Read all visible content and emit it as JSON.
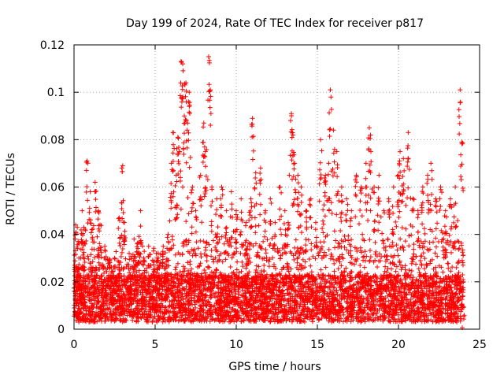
{
  "chart_data": {
    "type": "scatter",
    "title": "Day 199 of 2024, Rate Of TEC Index for receiver p817",
    "xlabel": "GPS time / hours",
    "ylabel": "ROTI / TECUs",
    "xlim": [
      0,
      25
    ],
    "ylim": [
      0,
      0.12
    ],
    "xticks": [
      0,
      5,
      10,
      15,
      20,
      25
    ],
    "xtick_labels": [
      "0",
      "5",
      "10",
      "15",
      "20",
      "25"
    ],
    "yticks": [
      0,
      0.02,
      0.04,
      0.06,
      0.08,
      0.1,
      0.12
    ],
    "ytick_labels": [
      "0",
      "0.02",
      "0.04",
      "0.06",
      "0.08",
      "0.1",
      "0.12"
    ],
    "grid": true,
    "marker": "+",
    "color": "#ff0000",
    "series": [
      {
        "name": "ROTI",
        "x": [
          0.1,
          0.2,
          0.3,
          0.5,
          0.6,
          0.8,
          1.0,
          1.1,
          1.3,
          1.5,
          1.6,
          1.9,
          2.2,
          2.5,
          2.8,
          3.0,
          3.1,
          3.4,
          3.7,
          3.9,
          4.1,
          4.3,
          4.6,
          4.9,
          5.2,
          5.5,
          5.8,
          6.0,
          6.1,
          6.3,
          6.4,
          6.5,
          6.6,
          6.7,
          6.8,
          6.9,
          7.0,
          7.1,
          7.3,
          7.5,
          7.8,
          8.0,
          8.1,
          8.3,
          8.4,
          8.5,
          8.8,
          9.1,
          9.4,
          9.7,
          10.0,
          10.3,
          10.6,
          10.9,
          11.0,
          11.2,
          11.5,
          11.8,
          12.1,
          12.4,
          12.7,
          13.0,
          13.2,
          13.4,
          13.5,
          13.6,
          13.8,
          14.0,
          14.3,
          14.6,
          14.9,
          15.2,
          15.5,
          15.7,
          15.8,
          16.0,
          16.2,
          16.5,
          16.8,
          17.1,
          17.4,
          17.7,
          18.0,
          18.2,
          18.3,
          18.5,
          18.8,
          19.1,
          19.4,
          19.7,
          20.0,
          20.1,
          20.3,
          20.6,
          20.9,
          21.2,
          21.5,
          21.8,
          22.0,
          22.3,
          22.6,
          22.9,
          23.2,
          23.5,
          23.8,
          23.9,
          24.0
        ],
        "y": [
          0.044,
          0.043,
          0.03,
          0.05,
          0.043,
          0.071,
          0.058,
          0.042,
          0.062,
          0.05,
          0.044,
          0.035,
          0.028,
          0.03,
          0.047,
          0.069,
          0.045,
          0.032,
          0.038,
          0.036,
          0.05,
          0.03,
          0.035,
          0.033,
          0.03,
          0.035,
          0.04,
          0.07,
          0.083,
          0.065,
          0.081,
          0.075,
          0.113,
          0.112,
          0.09,
          0.104,
          0.087,
          0.1,
          0.06,
          0.05,
          0.065,
          0.087,
          0.075,
          0.115,
          0.101,
          0.06,
          0.055,
          0.06,
          0.05,
          0.058,
          0.05,
          0.055,
          0.045,
          0.055,
          0.089,
          0.066,
          0.068,
          0.05,
          0.055,
          0.045,
          0.06,
          0.05,
          0.045,
          0.091,
          0.082,
          0.07,
          0.065,
          0.06,
          0.05,
          0.055,
          0.045,
          0.08,
          0.065,
          0.07,
          0.101,
          0.084,
          0.075,
          0.06,
          0.055,
          0.05,
          0.065,
          0.06,
          0.07,
          0.085,
          0.075,
          0.06,
          0.065,
          0.05,
          0.055,
          0.06,
          0.065,
          0.075,
          0.072,
          0.083,
          0.055,
          0.05,
          0.06,
          0.065,
          0.07,
          0.055,
          0.06,
          0.05,
          0.055,
          0.06,
          0.101,
          0.079,
          0.02
        ]
      }
    ]
  }
}
